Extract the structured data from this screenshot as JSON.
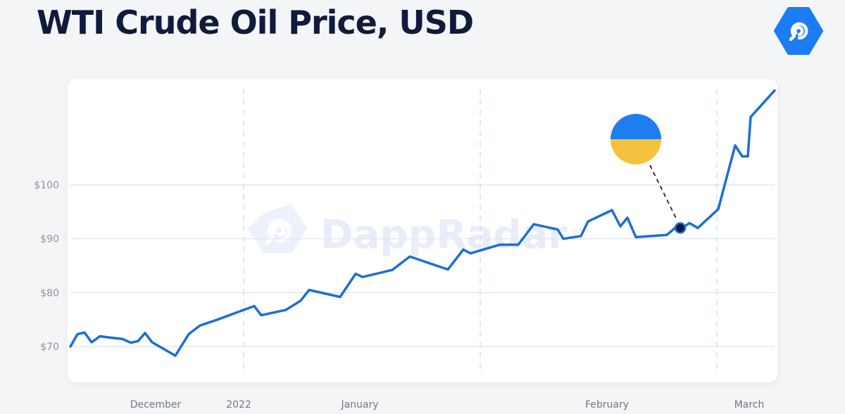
{
  "header": {
    "title": "WTI Crude Oil Price, USD",
    "logo_icon": "dappradar-logo-icon",
    "logo_color": "#1b7cf4"
  },
  "watermark": {
    "text": "DappRadar",
    "icon": "dappradar-logo-icon"
  },
  "chart_data": {
    "type": "line",
    "title": "WTI Crude Oil Price, USD",
    "xlabel": "",
    "ylabel": "",
    "ylim": [
      62,
      116
    ],
    "xlim": [
      0,
      100
    ],
    "grid": true,
    "legend": "none",
    "y_ticks": [
      {
        "value": 70,
        "label": "$70"
      },
      {
        "value": 80,
        "label": "$80"
      },
      {
        "value": 90,
        "label": "$90"
      },
      {
        "value": 100,
        "label": "$100"
      }
    ],
    "x_ticks": [
      {
        "label": "December",
        "x": 12.1
      },
      {
        "label": "2022",
        "x": 23.9
      },
      {
        "label": "January",
        "x": 41.1
      },
      {
        "label": "February",
        "x": 76.2
      },
      {
        "label": "March",
        "x": 96.4
      }
    ],
    "vertical_dividers": [
      24.6,
      58.2,
      91.8
    ],
    "series": [
      {
        "color": "#1b6fd8",
        "points": [
          [
            0,
            70.0
          ],
          [
            1.0,
            72.3
          ],
          [
            2.0,
            72.6
          ],
          [
            3.0,
            70.8
          ],
          [
            4.2,
            71.9
          ],
          [
            5.4,
            71.7
          ],
          [
            7.4,
            71.4
          ],
          [
            8.6,
            70.7
          ],
          [
            9.6,
            71.0
          ],
          [
            10.6,
            72.5
          ],
          [
            11.6,
            70.8
          ],
          [
            14.9,
            68.3
          ],
          [
            16.8,
            72.3
          ],
          [
            18.4,
            73.9
          ],
          [
            20.9,
            75.0
          ],
          [
            24.2,
            76.6
          ],
          [
            26.1,
            77.5
          ],
          [
            27.1,
            75.8
          ],
          [
            30.6,
            76.8
          ],
          [
            32.7,
            78.5
          ],
          [
            33.9,
            80.5
          ],
          [
            38.3,
            79.2
          ],
          [
            40.5,
            83.5
          ],
          [
            41.5,
            82.9
          ],
          [
            45.7,
            84.2
          ],
          [
            48.2,
            86.7
          ],
          [
            53.6,
            84.3
          ],
          [
            55.8,
            88.0
          ],
          [
            56.8,
            87.3
          ],
          [
            61.0,
            88.9
          ],
          [
            63.6,
            88.9
          ],
          [
            65.8,
            92.7
          ],
          [
            69.2,
            91.7
          ],
          [
            70.0,
            90.0
          ],
          [
            72.5,
            90.5
          ],
          [
            73.5,
            93.2
          ],
          [
            76.9,
            95.3
          ],
          [
            78.1,
            92.3
          ],
          [
            79.1,
            93.9
          ],
          [
            80.3,
            90.3
          ],
          [
            84.7,
            90.7
          ],
          [
            86.3,
            92.5
          ],
          [
            87.1,
            92.2
          ],
          [
            87.9,
            92.9
          ],
          [
            89.1,
            92.0
          ],
          [
            92.0,
            95.5
          ],
          [
            94.4,
            107.3
          ],
          [
            95.4,
            105.3
          ],
          [
            96.2,
            105.3
          ],
          [
            96.6,
            112.6
          ],
          [
            100,
            117.5
          ]
        ]
      }
    ],
    "annotation": {
      "kind": "flag-of-ukraine-marker",
      "x": 86.6,
      "y": 92.0,
      "flag_colors": [
        "#1e7ef0",
        "#f4c23c"
      ]
    }
  }
}
